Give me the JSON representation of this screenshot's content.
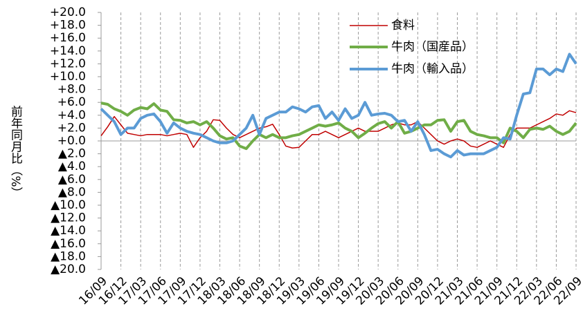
{
  "chart_data": {
    "type": "line",
    "y_label": "前年同月比（%）",
    "categories": [
      "16/09",
      null,
      null,
      "16/12",
      null,
      null,
      "17/03",
      null,
      null,
      "17/06",
      null,
      null,
      "17/09",
      null,
      null,
      "17/12",
      null,
      null,
      "18/03",
      null,
      null,
      "18/06",
      null,
      null,
      "18/09",
      null,
      null,
      "18/12",
      null,
      null,
      "19/03",
      null,
      null,
      "19/06",
      null,
      null,
      "19/09",
      null,
      null,
      "19/12",
      null,
      null,
      "20/03",
      null,
      null,
      "20/06",
      null,
      null,
      "20/09",
      null,
      null,
      "20/12",
      null,
      null,
      "21/03",
      null,
      null,
      "21/06",
      null,
      null,
      "21/09",
      null,
      null,
      "21/12",
      null,
      null,
      "22/03",
      null,
      null,
      "22/06",
      null,
      null,
      "22/09"
    ],
    "series": [
      {
        "name": "食料",
        "color": "#c00000",
        "width": 1.5,
        "values": [
          0.8,
          2.2,
          3.8,
          2.5,
          1.2,
          1.0,
          0.8,
          1.0,
          1.0,
          1.0,
          0.8,
          1.0,
          1.2,
          1.0,
          -1.0,
          0.5,
          1.5,
          3.3,
          3.2,
          2.0,
          1.0,
          0.5,
          1.0,
          1.5,
          2.0,
          2.2,
          2.6,
          1.0,
          -0.8,
          -1.1,
          -1.0,
          0.0,
          1.0,
          1.0,
          1.5,
          1.0,
          0.5,
          1.0,
          1.5,
          2.0,
          1.5,
          1.5,
          1.5,
          2.0,
          2.5,
          2.8,
          2.5,
          2.5,
          3.0,
          2.0,
          1.0,
          0.0,
          -0.5,
          0.0,
          0.3,
          0.0,
          -0.8,
          -1.0,
          -0.5,
          0.0,
          -0.5,
          -1.0,
          1.0,
          2.0,
          2.0,
          2.0,
          2.5,
          3.0,
          3.5,
          4.2,
          4.0,
          4.7,
          4.4
        ]
      },
      {
        "name": "牛肉（国産品）",
        "color": "#70ad47",
        "width": 4,
        "values": [
          5.9,
          5.7,
          5.0,
          4.6,
          4.0,
          4.8,
          5.2,
          5.0,
          5.8,
          4.8,
          4.6,
          3.3,
          3.2,
          2.8,
          3.0,
          2.5,
          3.0,
          2.0,
          0.8,
          0.3,
          0.5,
          -0.8,
          -1.2,
          0.0,
          1.0,
          0.5,
          1.0,
          0.5,
          0.5,
          0.8,
          1.0,
          1.5,
          2.0,
          2.5,
          2.3,
          2.5,
          2.8,
          2.0,
          1.5,
          0.5,
          1.2,
          2.0,
          2.7,
          3.0,
          2.0,
          3.0,
          1.2,
          1.5,
          2.0,
          2.5,
          2.5,
          3.2,
          3.3,
          1.5,
          3.0,
          3.2,
          1.5,
          1.0,
          0.8,
          0.5,
          0.5,
          -0.3,
          2.0,
          1.5,
          0.5,
          1.8,
          2.0,
          1.8,
          2.3,
          1.5,
          1.0,
          1.5,
          2.8
        ]
      },
      {
        "name": "牛肉（輸入品）",
        "color": "#5b9bd5",
        "width": 4,
        "values": [
          5.0,
          4.0,
          3.0,
          1.0,
          2.0,
          2.0,
          3.5,
          4.0,
          4.2,
          3.0,
          1.2,
          2.8,
          2.0,
          1.5,
          1.2,
          1.0,
          0.5,
          0.0,
          -0.3,
          -0.3,
          0.0,
          1.0,
          2.0,
          4.0,
          1.0,
          3.5,
          4.0,
          4.5,
          4.5,
          5.3,
          5.0,
          4.5,
          5.3,
          5.5,
          3.5,
          4.5,
          3.2,
          5.0,
          3.5,
          4.0,
          6.0,
          4.0,
          4.2,
          4.3,
          4.0,
          3.0,
          3.2,
          1.5,
          3.0,
          1.0,
          -1.5,
          -1.3,
          -2.0,
          -2.5,
          -1.5,
          -2.2,
          -2.0,
          -2.0,
          -2.0,
          -1.5,
          -1.0,
          0.5,
          0.3,
          4.0,
          7.3,
          7.5,
          11.2,
          11.2,
          10.3,
          11.2,
          10.8,
          13.5,
          12.0
        ]
      }
    ],
    "ylim": [
      -20,
      20
    ],
    "yticks": [
      {
        "value": 20,
        "label": "+20.0"
      },
      {
        "value": 18,
        "label": "+18.0"
      },
      {
        "value": 16,
        "label": "+16.0"
      },
      {
        "value": 14,
        "label": "+14.0"
      },
      {
        "value": 12,
        "label": "+12.0"
      },
      {
        "value": 10,
        "label": "+10.0"
      },
      {
        "value": 8,
        "label": "+8.0"
      },
      {
        "value": 6,
        "label": "+6.0"
      },
      {
        "value": 4,
        "label": "+4.0"
      },
      {
        "value": 2,
        "label": "+2.0"
      },
      {
        "value": 0,
        "label": "+0.0"
      },
      {
        "value": -2,
        "label": "▲2.0"
      },
      {
        "value": -4,
        "label": "▲4.0"
      },
      {
        "value": -6,
        "label": "▲6.0"
      },
      {
        "value": -8,
        "label": "▲8.0"
      },
      {
        "value": -10,
        "label": "▲10.0"
      },
      {
        "value": -12,
        "label": "▲12.0"
      },
      {
        "value": -14,
        "label": "▲14.0"
      },
      {
        "value": -16,
        "label": "▲16.0"
      },
      {
        "value": -18,
        "label": "▲18.0"
      },
      {
        "value": -20,
        "label": "▲20.0"
      }
    ],
    "negative_tick_color": "#ff0000",
    "grid": "x-dashed"
  }
}
